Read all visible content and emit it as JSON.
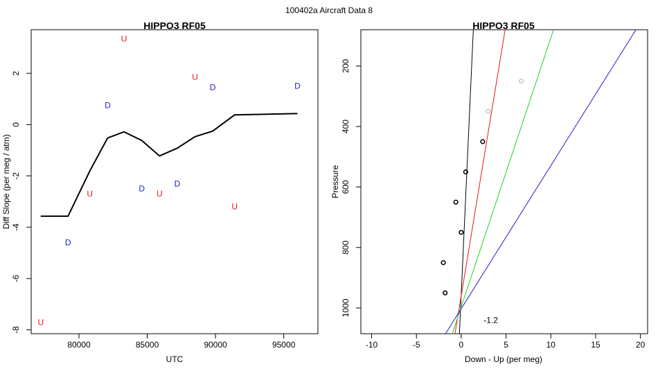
{
  "figure_title": "100402a   Aircraft Data 8",
  "chart_data": [
    {
      "type": "line",
      "title": "HIPPO3 RF05",
      "xlabel": "UTC",
      "ylabel": "Diff Slope (per meg / atm)",
      "xlim": [
        76500,
        97500
      ],
      "ylim": [
        -8.15,
        3.7
      ],
      "xticks": [
        80000,
        85000,
        90000,
        95000
      ],
      "xtick_labels": [
        "80000",
        "85000",
        "90000",
        "95000"
      ],
      "yticks": [
        -8,
        -6,
        -4,
        -2,
        0,
        2
      ],
      "ytick_labels": [
        "-8",
        "-6",
        "-4",
        "-2",
        "0",
        "2"
      ],
      "line": {
        "color": "#000000",
        "x": [
          77200,
          79200,
          80800,
          82100,
          83300,
          84600,
          85900,
          87200,
          88500,
          89800,
          91400,
          96000
        ],
        "y": [
          -3.57,
          -3.57,
          -1.8,
          -0.52,
          -0.28,
          -0.62,
          -1.22,
          -0.92,
          -0.47,
          -0.25,
          0.38,
          0.43
        ]
      },
      "markers": [
        {
          "label": "U",
          "color": "#e8141b",
          "x": 77200,
          "y": -7.7
        },
        {
          "label": "D",
          "color": "#1c1ccc",
          "x": 79200,
          "y": -4.6
        },
        {
          "label": "U",
          "color": "#e8141b",
          "x": 80800,
          "y": -2.7
        },
        {
          "label": "D",
          "color": "#1c1ccc",
          "x": 82100,
          "y": 0.75
        },
        {
          "label": "U",
          "color": "#e8141b",
          "x": 83300,
          "y": 3.35
        },
        {
          "label": "D",
          "color": "#1c1ccc",
          "x": 84600,
          "y": -2.5
        },
        {
          "label": "U",
          "color": "#e8141b",
          "x": 85900,
          "y": -2.7
        },
        {
          "label": "D",
          "color": "#1c1ccc",
          "x": 87200,
          "y": -2.3
        },
        {
          "label": "U",
          "color": "#e8141b",
          "x": 88500,
          "y": 1.85
        },
        {
          "label": "D",
          "color": "#1c1ccc",
          "x": 89800,
          "y": 1.45
        },
        {
          "label": "U",
          "color": "#e8141b",
          "x": 91400,
          "y": -3.2
        },
        {
          "label": "D",
          "color": "#1c1ccc",
          "x": 96000,
          "y": 1.5
        }
      ]
    },
    {
      "type": "scatter",
      "title": "HIPPO3 RF05",
      "xlabel": "Down - Up (per meg)",
      "ylabel": "Pressure",
      "xlim": [
        -11.2,
        20.8
      ],
      "ylim": [
        1085,
        80
      ],
      "xticks": [
        -10,
        -5,
        0,
        5,
        10,
        15,
        20
      ],
      "xtick_labels": [
        "-10",
        "-5",
        "0",
        "5",
        "10",
        "15",
        "20"
      ],
      "yticks": [
        200,
        400,
        600,
        800,
        1000
      ],
      "ytick_labels": [
        "200",
        "400",
        "600",
        "800",
        "1000"
      ],
      "points": [
        {
          "x": 6.7,
          "y": 250,
          "color": "#c8c8c8"
        },
        {
          "x": 3.0,
          "y": 350,
          "color": "#c8c8c8"
        },
        {
          "x": 2.4,
          "y": 450,
          "color": "#000000"
        },
        {
          "x": 0.5,
          "y": 550,
          "color": "#000000"
        },
        {
          "x": -0.6,
          "y": 650,
          "color": "#000000"
        },
        {
          "x": 0.0,
          "y": 750,
          "color": "#000000"
        },
        {
          "x": -2.0,
          "y": 850,
          "color": "#000000"
        },
        {
          "x": -1.8,
          "y": 950,
          "color": "#000000"
        }
      ],
      "fit_lines": [
        {
          "name": "black",
          "color": "#000000",
          "x0": -0.2,
          "p0": 1085,
          "x1": 1.35,
          "p1": 80
        },
        {
          "name": "red",
          "color": "#e8141b",
          "x0": -0.7,
          "p0": 1085,
          "x1": 4.9,
          "p1": 80
        },
        {
          "name": "green",
          "color": "#1fd41f",
          "x0": -1.0,
          "p0": 1085,
          "x1": 10.3,
          "p1": 80
        },
        {
          "name": "blue",
          "color": "#1c1ccc",
          "x0": -1.75,
          "p0": 1085,
          "x1": 19.5,
          "p1": 80
        }
      ],
      "annotation": {
        "text": "-1.2",
        "x": 3.3,
        "y": 1040
      }
    }
  ]
}
